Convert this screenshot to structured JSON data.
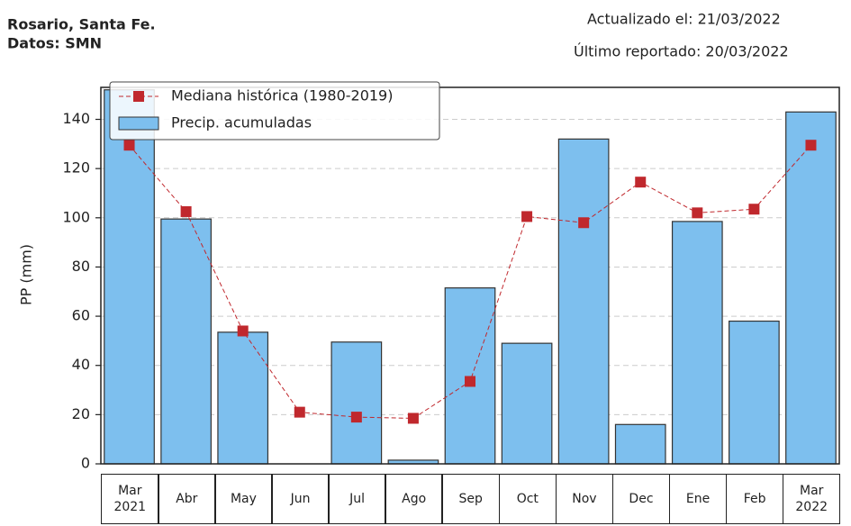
{
  "chart_data": {
    "type": "bar",
    "annotations": [
      "Rosario, Santa Fe.",
      "Datos: SMN",
      "Actualizado el: 21/03/2022",
      "Último reportado: 20/03/2022"
    ],
    "ylabel": "PP (mm)",
    "categories": [
      "Mar\n2021",
      "Abr",
      "May",
      "Jun",
      "Jul",
      "Ago",
      "Sep",
      "Oct",
      "Nov",
      "Dec",
      "Ene",
      "Feb",
      "Mar\n2022"
    ],
    "series": [
      {
        "name": "Mediana histórica (1980-2019)",
        "type": "line",
        "color": "#c0282d",
        "values": [
          129.5,
          102.5,
          54,
          21,
          19,
          18.5,
          33.5,
          100.5,
          98,
          114.5,
          102,
          103.5,
          129.5
        ]
      },
      {
        "name": "Precip. acumuladas",
        "type": "bar",
        "color": "#7dbfee",
        "values": [
          152,
          99.5,
          53.5,
          0,
          49.5,
          1.5,
          71.5,
          49,
          132,
          16,
          98.5,
          58,
          143
        ]
      }
    ],
    "ylim": [
      0,
      153
    ],
    "yticks": [
      0,
      20,
      40,
      60,
      80,
      100,
      120,
      140
    ],
    "grid": true,
    "legend": "upper-left"
  }
}
